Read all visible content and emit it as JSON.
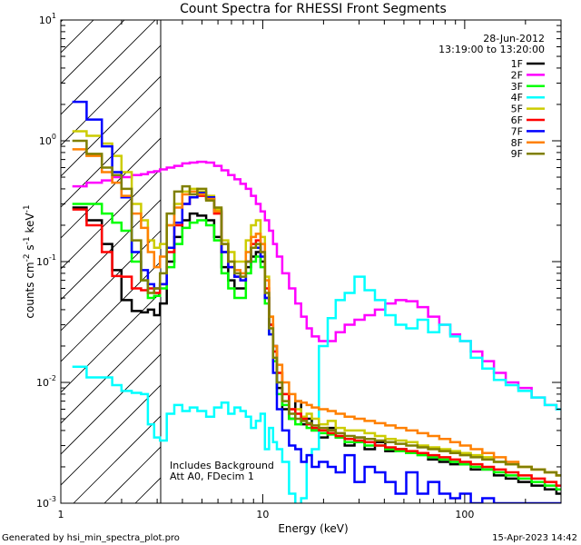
{
  "chart_data": {
    "type": "line",
    "title": "Count Spectra for RHESSI Front Segments",
    "xlabel": "Energy (keV)",
    "ylabel_parts": [
      "counts cm",
      "-2",
      " s",
      "-1",
      " keV",
      "-1"
    ],
    "xscale": "log",
    "yscale": "log",
    "xlim": [
      1,
      300
    ],
    "ylim": [
      0.001,
      10
    ],
    "x_ticks": [
      {
        "value": 1,
        "label": "1"
      },
      {
        "value": 10,
        "label": "10"
      },
      {
        "value": 100,
        "label": "100"
      }
    ],
    "y_ticks": [
      {
        "value": 0.001,
        "base": "10",
        "exp": "-3"
      },
      {
        "value": 0.01,
        "base": "10",
        "exp": "-2"
      },
      {
        "value": 0.1,
        "base": "10",
        "exp": "-1"
      },
      {
        "value": 1,
        "base": "10",
        "exp": "0"
      },
      {
        "value": 10,
        "base": "10",
        "exp": "1"
      }
    ],
    "date": "28-Jun-2012",
    "time_range": "13:19:00 to 13:20:00",
    "hatched_region_keV": [
      1,
      3
    ],
    "annotations": [
      "Includes Background",
      "Att A0, FDecim 1"
    ],
    "footer_left": "Generated by hsi_min_spectra_plot.pro",
    "footer_right": "15-Apr-2023 14:42",
    "legend_position": "top-right",
    "series": [
      {
        "name": "1F",
        "color": "#000000",
        "x": [
          1.2,
          1.5,
          1.7,
          1.9,
          2.1,
          2.4,
          2.6,
          2.8,
          3.0,
          3.2,
          3.5,
          3.8,
          4.2,
          4.5,
          5.0,
          5.5,
          6.0,
          6.5,
          7.0,
          7.5,
          8.0,
          8.5,
          9.0,
          9.5,
          10.0,
          10.5,
          11.0,
          11.5,
          12.0,
          13.0,
          14.0,
          15.0,
          16.0,
          17.0,
          18.0,
          20.0,
          22.0,
          24.0,
          27.0,
          30.0,
          34.0,
          38.0,
          43.0,
          48.0,
          55.0,
          62.0,
          70.0,
          80.0,
          90.0,
          100.0,
          115.0,
          130.0,
          150.0,
          170.0,
          200.0,
          230.0,
          270.0,
          300.0
        ],
        "y": [
          0.28,
          0.22,
          0.14,
          0.085,
          0.048,
          0.039,
          0.038,
          0.04,
          0.036,
          0.045,
          0.1,
          0.16,
          0.22,
          0.25,
          0.24,
          0.22,
          0.16,
          0.09,
          0.07,
          0.06,
          0.06,
          0.09,
          0.11,
          0.12,
          0.1,
          0.05,
          0.03,
          0.02,
          0.009,
          0.006,
          0.005,
          0.007,
          0.0045,
          0.005,
          0.004,
          0.0035,
          0.0042,
          0.0035,
          0.003,
          0.0035,
          0.0028,
          0.0032,
          0.0027,
          0.0028,
          0.0026,
          0.0026,
          0.0023,
          0.0022,
          0.0021,
          0.0021,
          0.0019,
          0.0019,
          0.0017,
          0.0016,
          0.0015,
          0.0014,
          0.0013,
          0.0012
        ]
      },
      {
        "name": "2F",
        "color": "#ff00ff",
        "x": [
          1.2,
          1.5,
          1.7,
          1.9,
          2.1,
          2.4,
          2.6,
          2.8,
          3.0,
          3.2,
          3.5,
          3.8,
          4.2,
          4.5,
          5.0,
          5.5,
          6.0,
          6.5,
          7.0,
          7.5,
          8.0,
          8.5,
          9.0,
          9.5,
          10.0,
          10.5,
          11.0,
          11.5,
          12.0,
          13.0,
          14.0,
          15.0,
          16.0,
          17.0,
          18.0,
          20.0,
          22.0,
          24.0,
          27.0,
          30.0,
          34.0,
          38.0,
          43.0,
          48.0,
          55.0,
          62.0,
          70.0,
          80.0,
          90.0,
          100.0,
          115.0,
          130.0,
          150.0,
          170.0,
          200.0,
          230.0,
          270.0,
          300.0
        ],
        "y": [
          0.42,
          0.45,
          0.47,
          0.5,
          0.5,
          0.52,
          0.53,
          0.55,
          0.56,
          0.58,
          0.6,
          0.62,
          0.65,
          0.66,
          0.67,
          0.66,
          0.62,
          0.57,
          0.52,
          0.48,
          0.44,
          0.4,
          0.35,
          0.3,
          0.26,
          0.22,
          0.18,
          0.14,
          0.11,
          0.08,
          0.06,
          0.045,
          0.035,
          0.028,
          0.024,
          0.022,
          0.022,
          0.026,
          0.03,
          0.033,
          0.036,
          0.04,
          0.045,
          0.048,
          0.047,
          0.042,
          0.035,
          0.03,
          0.025,
          0.022,
          0.018,
          0.015,
          0.012,
          0.01,
          0.009,
          0.0075,
          0.0065,
          0.006
        ]
      },
      {
        "name": "3F",
        "color": "#00ff00",
        "x": [
          1.2,
          1.5,
          1.7,
          1.9,
          2.1,
          2.4,
          2.6,
          2.8,
          3.0,
          3.2,
          3.5,
          3.8,
          4.2,
          4.5,
          5.0,
          5.5,
          6.0,
          6.5,
          7.0,
          7.5,
          8.0,
          8.5,
          9.0,
          9.5,
          10.0,
          10.5,
          11.0,
          11.5,
          12.0,
          13.0,
          14.0,
          15.0,
          16.0,
          17.0,
          18.0,
          20.0,
          22.0,
          24.0,
          27.0,
          30.0,
          34.0,
          38.0,
          43.0,
          48.0,
          55.0,
          62.0,
          70.0,
          80.0,
          90.0,
          100.0,
          115.0,
          130.0,
          150.0,
          170.0,
          200.0,
          230.0,
          270.0,
          300.0
        ],
        "y": [
          0.3,
          0.3,
          0.25,
          0.21,
          0.18,
          0.1,
          0.07,
          0.05,
          0.052,
          0.06,
          0.09,
          0.14,
          0.19,
          0.21,
          0.22,
          0.2,
          0.15,
          0.08,
          0.06,
          0.05,
          0.05,
          0.08,
          0.1,
          0.11,
          0.09,
          0.045,
          0.025,
          0.015,
          0.008,
          0.0065,
          0.005,
          0.0045,
          0.005,
          0.0042,
          0.004,
          0.0038,
          0.0037,
          0.0035,
          0.0032,
          0.0032,
          0.003,
          0.003,
          0.0028,
          0.0027,
          0.0026,
          0.0025,
          0.0024,
          0.0023,
          0.0022,
          0.0021,
          0.002,
          0.0019,
          0.0018,
          0.0017,
          0.0016,
          0.0015,
          0.0014,
          0.0013
        ]
      },
      {
        "name": "4F",
        "color": "#00ffff",
        "x": [
          1.2,
          1.5,
          1.7,
          1.9,
          2.1,
          2.4,
          2.6,
          2.8,
          3.0,
          3.2,
          3.5,
          3.8,
          4.2,
          4.5,
          5.0,
          5.5,
          6.0,
          6.5,
          7.0,
          7.5,
          8.0,
          8.5,
          9.0,
          9.5,
          10.0,
          10.5,
          11.0,
          11.5,
          12.0,
          13.0,
          14.0,
          15.0,
          16.0,
          17.0,
          18.0,
          20.0,
          22.0,
          24.0,
          27.0,
          30.0,
          34.0,
          38.0,
          43.0,
          48.0,
          55.0,
          62.0,
          70.0,
          80.0,
          90.0,
          100.0,
          115.0,
          130.0,
          150.0,
          170.0,
          200.0,
          230.0,
          270.0,
          300.0
        ],
        "y": [
          0.0135,
          0.011,
          0.011,
          0.0095,
          0.0085,
          0.0082,
          0.008,
          0.0045,
          0.0035,
          0.0033,
          0.0055,
          0.0065,
          0.0058,
          0.0062,
          0.0058,
          0.0052,
          0.0062,
          0.0068,
          0.0055,
          0.0062,
          0.0058,
          0.0052,
          0.0042,
          0.0048,
          0.0055,
          0.0028,
          0.0042,
          0.0032,
          0.0028,
          0.0022,
          0.0012,
          0.0009,
          0.0011,
          0.0025,
          0.0028,
          0.02,
          0.034,
          0.048,
          0.055,
          0.075,
          0.058,
          0.048,
          0.036,
          0.03,
          0.028,
          0.033,
          0.026,
          0.03,
          0.024,
          0.022,
          0.016,
          0.013,
          0.0105,
          0.0095,
          0.0085,
          0.0075,
          0.0065,
          0.006
        ]
      },
      {
        "name": "5F",
        "color": "#cccc00",
        "x": [
          1.2,
          1.5,
          1.7,
          1.9,
          2.1,
          2.4,
          2.6,
          2.8,
          3.0,
          3.2,
          3.5,
          3.8,
          4.2,
          4.5,
          5.0,
          5.5,
          6.0,
          6.5,
          7.0,
          7.5,
          8.0,
          8.5,
          9.0,
          9.5,
          10.0,
          10.5,
          11.0,
          11.5,
          12.0,
          13.0,
          14.0,
          15.0,
          16.0,
          17.0,
          18.0,
          20.0,
          22.0,
          24.0,
          27.0,
          30.0,
          34.0,
          38.0,
          43.0,
          48.0,
          55.0,
          62.0,
          70.0,
          80.0,
          90.0,
          100.0,
          115.0,
          130.0,
          150.0,
          170.0,
          200.0,
          230.0,
          270.0,
          300.0
        ],
        "y": [
          1.2,
          1.1,
          0.95,
          0.75,
          0.55,
          0.3,
          0.22,
          0.15,
          0.13,
          0.14,
          0.2,
          0.3,
          0.38,
          0.4,
          0.38,
          0.35,
          0.27,
          0.15,
          0.12,
          0.1,
          0.1,
          0.15,
          0.2,
          0.22,
          0.16,
          0.075,
          0.035,
          0.018,
          0.012,
          0.008,
          0.006,
          0.006,
          0.0052,
          0.0055,
          0.005,
          0.0045,
          0.0048,
          0.0042,
          0.004,
          0.004,
          0.0038,
          0.0036,
          0.0034,
          0.0033,
          0.0032,
          0.003,
          0.0029,
          0.0028,
          0.0027,
          0.0026,
          0.0025,
          0.0024,
          0.0022,
          0.0021,
          0.002,
          0.0019,
          0.0018,
          0.0017
        ]
      },
      {
        "name": "6F",
        "color": "#ff0000",
        "x": [
          1.2,
          1.5,
          1.7,
          1.9,
          2.1,
          2.4,
          2.6,
          2.8,
          3.0,
          3.2,
          3.5,
          3.8,
          4.2,
          4.5,
          5.0,
          5.5,
          6.0,
          6.5,
          7.0,
          7.5,
          8.0,
          8.5,
          9.0,
          9.5,
          10.0,
          10.5,
          11.0,
          11.5,
          12.0,
          13.0,
          14.0,
          15.0,
          16.0,
          17.0,
          18.0,
          20.0,
          22.0,
          24.0,
          27.0,
          30.0,
          34.0,
          38.0,
          43.0,
          48.0,
          55.0,
          62.0,
          70.0,
          80.0,
          90.0,
          100.0,
          115.0,
          130.0,
          150.0,
          170.0,
          200.0,
          230.0,
          270.0,
          300.0
        ],
        "y": [
          0.27,
          0.2,
          0.12,
          0.076,
          0.075,
          0.06,
          0.058,
          0.06,
          0.055,
          0.065,
          0.12,
          0.2,
          0.3,
          0.34,
          0.35,
          0.33,
          0.25,
          0.12,
          0.09,
          0.075,
          0.07,
          0.1,
          0.14,
          0.15,
          0.12,
          0.06,
          0.03,
          0.018,
          0.012,
          0.008,
          0.006,
          0.0055,
          0.005,
          0.0045,
          0.0042,
          0.004,
          0.0038,
          0.0036,
          0.0034,
          0.0033,
          0.0032,
          0.003,
          0.0029,
          0.0028,
          0.0027,
          0.0026,
          0.0025,
          0.0024,
          0.0023,
          0.0022,
          0.0021,
          0.002,
          0.0019,
          0.0018,
          0.0017,
          0.0016,
          0.0015,
          0.0014
        ]
      },
      {
        "name": "7F",
        "color": "#0000ff",
        "x": [
          1.2,
          1.5,
          1.7,
          1.9,
          2.1,
          2.4,
          2.6,
          2.8,
          3.0,
          3.2,
          3.5,
          3.8,
          4.2,
          4.5,
          5.0,
          5.5,
          6.0,
          6.5,
          7.0,
          7.5,
          8.0,
          8.5,
          9.0,
          9.5,
          10.0,
          10.5,
          11.0,
          11.5,
          12.0,
          13.0,
          14.0,
          15.0,
          16.0,
          17.0,
          18.0,
          20.0,
          22.0,
          24.0,
          27.0,
          30.0,
          34.0,
          38.0,
          43.0,
          48.0,
          55.0,
          62.0,
          70.0,
          80.0,
          90.0,
          100.0,
          115.0,
          130.0,
          150.0,
          170.0,
          200.0,
          230.0,
          270.0,
          300.0
        ],
        "y": [
          2.1,
          1.5,
          0.9,
          0.55,
          0.34,
          0.12,
          0.085,
          0.065,
          0.06,
          0.065,
          0.13,
          0.21,
          0.3,
          0.34,
          0.37,
          0.34,
          0.26,
          0.12,
          0.09,
          0.075,
          0.07,
          0.1,
          0.13,
          0.13,
          0.11,
          0.05,
          0.025,
          0.012,
          0.006,
          0.004,
          0.003,
          0.0028,
          0.0022,
          0.0025,
          0.002,
          0.0022,
          0.002,
          0.0018,
          0.0025,
          0.0015,
          0.002,
          0.0018,
          0.0015,
          0.0012,
          0.0018,
          0.0012,
          0.0015,
          0.0012,
          0.0011,
          0.0012,
          0.001,
          0.0011,
          0.001,
          0.001,
          0.001,
          0.001,
          0.001,
          0.001
        ]
      },
      {
        "name": "8F",
        "color": "#ff8000",
        "x": [
          1.2,
          1.5,
          1.7,
          1.9,
          2.1,
          2.4,
          2.6,
          2.8,
          3.0,
          3.2,
          3.5,
          3.8,
          4.2,
          4.5,
          5.0,
          5.5,
          6.0,
          6.5,
          7.0,
          7.5,
          8.0,
          8.5,
          9.0,
          9.5,
          10.0,
          10.5,
          11.0,
          11.5,
          12.0,
          13.0,
          14.0,
          15.0,
          16.0,
          17.0,
          18.0,
          20.0,
          22.0,
          24.0,
          27.0,
          30.0,
          34.0,
          38.0,
          43.0,
          48.0,
          55.0,
          62.0,
          70.0,
          80.0,
          90.0,
          100.0,
          115.0,
          130.0,
          150.0,
          170.0,
          200.0,
          230.0,
          270.0,
          300.0
        ],
        "y": [
          0.85,
          0.75,
          0.55,
          0.45,
          0.35,
          0.25,
          0.19,
          0.12,
          0.09,
          0.11,
          0.2,
          0.28,
          0.36,
          0.38,
          0.36,
          0.33,
          0.26,
          0.14,
          0.1,
          0.085,
          0.08,
          0.12,
          0.16,
          0.17,
          0.14,
          0.07,
          0.035,
          0.02,
          0.014,
          0.01,
          0.008,
          0.007,
          0.0068,
          0.0065,
          0.0062,
          0.006,
          0.0058,
          0.0055,
          0.0052,
          0.005,
          0.0048,
          0.0046,
          0.0044,
          0.0042,
          0.004,
          0.0038,
          0.0036,
          0.0034,
          0.0032,
          0.003,
          0.0028,
          0.0026,
          0.0024,
          0.0022,
          0.002,
          0.0019,
          0.0018,
          0.0017
        ]
      },
      {
        "name": "9F",
        "color": "#808000",
        "x": [
          1.2,
          1.5,
          1.7,
          1.9,
          2.1,
          2.4,
          2.6,
          2.8,
          3.0,
          3.2,
          3.5,
          3.8,
          4.2,
          4.5,
          5.0,
          5.5,
          6.0,
          6.5,
          7.0,
          7.5,
          8.0,
          8.5,
          9.0,
          9.5,
          10.0,
          10.5,
          11.0,
          11.5,
          12.0,
          13.0,
          14.0,
          15.0,
          16.0,
          17.0,
          18.0,
          20.0,
          22.0,
          24.0,
          27.0,
          30.0,
          34.0,
          38.0,
          43.0,
          48.0,
          55.0,
          62.0,
          70.0,
          80.0,
          90.0,
          100.0,
          115.0,
          130.0,
          150.0,
          170.0,
          200.0,
          230.0,
          270.0,
          300.0
        ],
        "y": [
          1.0,
          0.78,
          0.6,
          0.52,
          0.4,
          0.15,
          0.07,
          0.055,
          0.06,
          0.08,
          0.25,
          0.38,
          0.42,
          0.36,
          0.4,
          0.32,
          0.28,
          0.14,
          0.1,
          0.08,
          0.075,
          0.1,
          0.13,
          0.14,
          0.12,
          0.055,
          0.028,
          0.016,
          0.01,
          0.007,
          0.0055,
          0.005,
          0.0048,
          0.0046,
          0.0044,
          0.0042,
          0.004,
          0.0038,
          0.0036,
          0.0035,
          0.0034,
          0.0033,
          0.0032,
          0.0031,
          0.003,
          0.0029,
          0.0028,
          0.0027,
          0.0026,
          0.0025,
          0.0024,
          0.0023,
          0.0022,
          0.0021,
          0.002,
          0.0019,
          0.0018,
          0.0017
        ]
      }
    ]
  }
}
